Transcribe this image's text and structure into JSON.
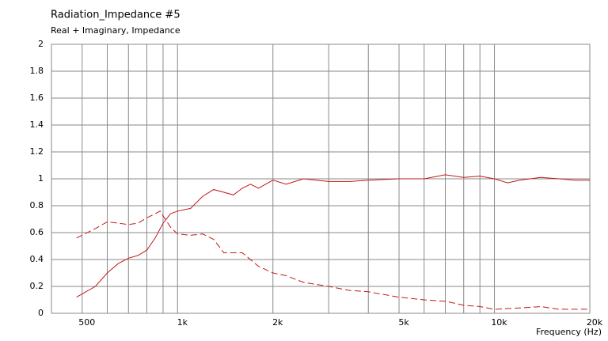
{
  "chart_data": {
    "type": "line",
    "title": "Radiation_Impedance #5",
    "subtitle": "Real + Imaginary, Impedance",
    "x_label": "Frequency  (Hz)",
    "x_log": true,
    "xlim": [
      400,
      20000
    ],
    "xticks": [
      {
        "value": 500,
        "label": "500"
      },
      {
        "value": 1000,
        "label": "1k"
      },
      {
        "value": 2000,
        "label": "2k"
      },
      {
        "value": 5000,
        "label": "5k"
      },
      {
        "value": 10000,
        "label": "10k"
      },
      {
        "value": 20000,
        "label": "20k"
      }
    ],
    "x_minor_grid": [
      600,
      700,
      800,
      900,
      3000,
      4000,
      6000,
      7000,
      8000,
      9000
    ],
    "ylim": [
      0,
      2
    ],
    "yticks": [
      0,
      0.2,
      0.4,
      0.6,
      0.8,
      1,
      1.2,
      1.4,
      1.6,
      1.8,
      2
    ],
    "grid": true,
    "series": [
      {
        "color": "#c01818",
        "dash": false,
        "x": [
          480,
          550,
          600,
          650,
          700,
          750,
          800,
          850,
          900,
          950,
          1000,
          1100,
          1200,
          1300,
          1400,
          1500,
          1600,
          1700,
          1800,
          2000,
          2200,
          2500,
          3000,
          3500,
          4000,
          5000,
          6000,
          7000,
          8000,
          9000,
          10000,
          11000,
          12000,
          14000,
          16000,
          18000,
          20000
        ],
        "values": [
          0.12,
          0.2,
          0.3,
          0.37,
          0.41,
          0.43,
          0.47,
          0.56,
          0.67,
          0.74,
          0.76,
          0.78,
          0.87,
          0.92,
          0.9,
          0.88,
          0.93,
          0.96,
          0.93,
          0.99,
          0.96,
          1.0,
          0.98,
          0.98,
          0.99,
          1.0,
          1.0,
          1.03,
          1.01,
          1.02,
          1.0,
          0.97,
          0.99,
          1.01,
          1.0,
          0.99,
          0.99
        ]
      },
      {
        "color": "#c01818",
        "dash": true,
        "x": [
          480,
          550,
          600,
          700,
          750,
          800,
          850,
          880,
          950,
          1000,
          1100,
          1200,
          1300,
          1400,
          1600,
          1800,
          2000,
          2200,
          2500,
          3000,
          3500,
          4000,
          5000,
          6000,
          7000,
          8000,
          9000,
          10000,
          12000,
          14000,
          16000,
          20000
        ],
        "values": [
          0.56,
          0.63,
          0.68,
          0.66,
          0.67,
          0.71,
          0.74,
          0.76,
          0.64,
          0.59,
          0.58,
          0.59,
          0.55,
          0.45,
          0.45,
          0.35,
          0.3,
          0.28,
          0.23,
          0.2,
          0.17,
          0.16,
          0.12,
          0.1,
          0.09,
          0.06,
          0.05,
          0.03,
          0.04,
          0.05,
          0.03,
          0.03
        ]
      }
    ]
  }
}
